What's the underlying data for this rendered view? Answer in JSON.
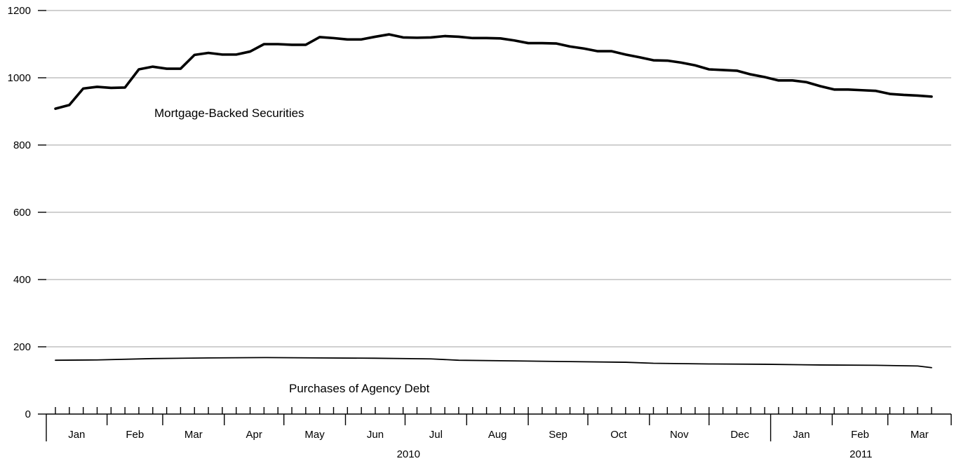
{
  "chart_data": {
    "type": "line",
    "title": "",
    "xlabel": "",
    "ylabel": "",
    "ylim": [
      0,
      1200
    ],
    "yticks": [
      "0",
      "200",
      "400",
      "600",
      "800",
      "1000",
      "1200"
    ],
    "grid": true,
    "x_start": "2010-01-06",
    "x_end": "2011-03-23",
    "month_labels": [
      "Jan",
      "Feb",
      "Mar",
      "Apr",
      "May",
      "Jun",
      "Jul",
      "Aug",
      "Sep",
      "Oct",
      "Nov",
      "Dec",
      "Jan",
      "Feb",
      "Mar"
    ],
    "year_labels": [
      "2010",
      "2011"
    ],
    "series": [
      {
        "name": "Mortgage-Backed Securities",
        "x": [
          "2010-01-06",
          "2010-01-13",
          "2010-01-20",
          "2010-01-27",
          "2010-02-03",
          "2010-02-10",
          "2010-02-17",
          "2010-02-24",
          "2010-03-03",
          "2010-03-10",
          "2010-03-17",
          "2010-03-24",
          "2010-03-31",
          "2010-04-07",
          "2010-04-14",
          "2010-04-21",
          "2010-04-28",
          "2010-05-05",
          "2010-05-12",
          "2010-05-19",
          "2010-05-26",
          "2010-06-02",
          "2010-06-09",
          "2010-06-16",
          "2010-06-23",
          "2010-06-30",
          "2010-07-07",
          "2010-07-14",
          "2010-07-21",
          "2010-07-28",
          "2010-08-04",
          "2010-08-11",
          "2010-08-18",
          "2010-08-25",
          "2010-09-01",
          "2010-09-08",
          "2010-09-15",
          "2010-09-22",
          "2010-09-29",
          "2010-10-06",
          "2010-10-13",
          "2010-10-20",
          "2010-10-27",
          "2010-11-03",
          "2010-11-10",
          "2010-11-17",
          "2010-11-24",
          "2010-12-01",
          "2010-12-08",
          "2010-12-15",
          "2010-12-22",
          "2010-12-29",
          "2011-01-05",
          "2011-01-12",
          "2011-01-19",
          "2011-01-26",
          "2011-02-02",
          "2011-02-09",
          "2011-02-16",
          "2011-02-23",
          "2011-03-02",
          "2011-03-09",
          "2011-03-16",
          "2011-03-23"
        ],
        "values": [
          908,
          919,
          968,
          973,
          970,
          971,
          1025,
          1033,
          1027,
          1027,
          1068,
          1074,
          1069,
          1069,
          1078,
          1100,
          1100,
          1098,
          1098,
          1121,
          1118,
          1114,
          1114,
          1122,
          1129,
          1120,
          1119,
          1120,
          1124,
          1122,
          1118,
          1118,
          1117,
          1111,
          1103,
          1103,
          1102,
          1093,
          1087,
          1079,
          1079,
          1069,
          1061,
          1052,
          1051,
          1045,
          1037,
          1025,
          1023,
          1021,
          1010,
          1002,
          992,
          992,
          987,
          975,
          965,
          965,
          963,
          961,
          952,
          949,
          947,
          944
        ]
      },
      {
        "name": "Purchases of Agency Debt",
        "x": [
          "2010-01-06",
          "2010-01-27",
          "2010-02-24",
          "2010-03-24",
          "2010-04-21",
          "2010-05-19",
          "2010-06-16",
          "2010-07-14",
          "2010-07-28",
          "2010-08-25",
          "2010-09-22",
          "2010-10-20",
          "2010-11-03",
          "2010-12-01",
          "2010-12-29",
          "2011-01-26",
          "2011-02-23",
          "2011-03-16",
          "2011-03-23"
        ],
        "values": [
          160,
          161,
          165,
          167,
          168,
          167,
          166,
          164,
          160,
          158,
          156,
          154,
          151,
          149,
          148,
          146,
          145,
          143,
          138
        ]
      }
    ]
  }
}
